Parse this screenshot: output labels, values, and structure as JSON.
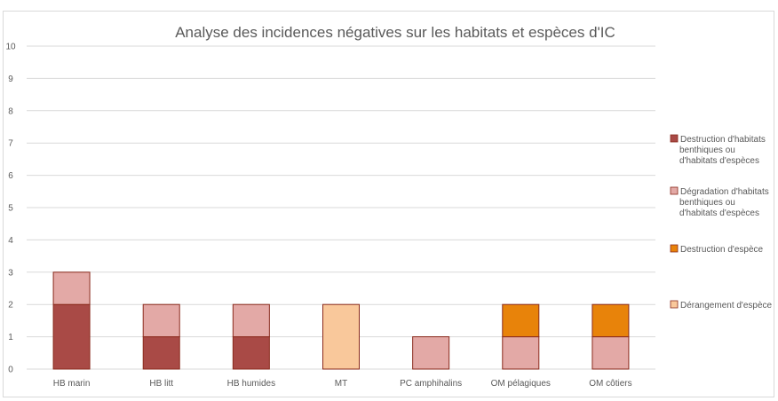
{
  "chart_data": {
    "type": "bar",
    "stacked": true,
    "title": "Analyse des incidences négatives sur les habitats et espèces d'IC",
    "xlabel": "",
    "ylabel": "",
    "ylim": [
      0,
      10
    ],
    "yticks": [
      "0",
      "1",
      "2",
      "3",
      "4",
      "5",
      "6",
      "7",
      "8",
      "9",
      "10"
    ],
    "grid": true,
    "legend_position": "right",
    "categories": [
      "HB marin",
      "HB litt",
      "HB humides",
      "MT",
      "PC amphihalins",
      "OM pélagiques",
      "OM côtiers"
    ],
    "series": [
      {
        "name": "Destruction d'habitats benthiques ou d'habitats d'espèces",
        "legend_lines": [
          "Destruction d'habitats",
          "benthiques ou",
          "d'habitats d'espèces"
        ],
        "color": "#a94a46",
        "values": [
          2,
          1,
          1,
          0,
          0,
          0,
          0
        ]
      },
      {
        "name": "Dégradation d'habitats benthiques ou d'habitats d'espèces",
        "legend_lines": [
          "Dégradation d'habitats",
          "benthiques ou",
          "d'habitats d'espèces"
        ],
        "color": "#e3a9a6",
        "values": [
          1,
          1,
          1,
          0,
          1,
          1,
          1
        ]
      },
      {
        "name": "Destruction d'espèce",
        "legend_lines": [
          "Destruction d'espèce"
        ],
        "color": "#e8830a",
        "values": [
          0,
          0,
          0,
          0,
          0,
          1,
          1
        ]
      },
      {
        "name": "Dérangement d'espèce",
        "legend_lines": [
          "Dérangement d'espèce"
        ],
        "color": "#f9c89b",
        "values": [
          0,
          0,
          0,
          2,
          0,
          0,
          0
        ]
      }
    ],
    "bar_outline_color": "#8a2a1c",
    "gridline_color": "#d9d9d9"
  }
}
